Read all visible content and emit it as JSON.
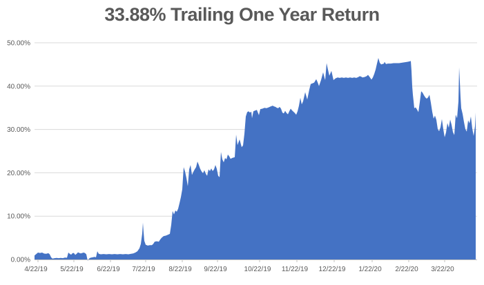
{
  "chart_data": {
    "type": "area",
    "title": "33.88% Trailing One Year Return",
    "series_name": "Trailing One Year Return",
    "last_value_pct": 33.88,
    "xlabel": "",
    "ylabel": "",
    "ylim": [
      0,
      50
    ],
    "x_range": [
      0,
      641
    ],
    "grid": true,
    "legend_position": "none",
    "colors": {
      "area": "#4472C4",
      "grid": "#D9D9D9",
      "axis": "#BFBFBF",
      "text": "#595959",
      "title": "#595959",
      "background": "#FFFFFF"
    },
    "y_ticks": [
      {
        "value": 0,
        "label": "0.00%"
      },
      {
        "value": 10,
        "label": "10.00%"
      },
      {
        "value": 20,
        "label": "20.00%"
      },
      {
        "value": 30,
        "label": "30.00%"
      },
      {
        "value": 40,
        "label": "40.00%"
      },
      {
        "value": 50,
        "label": "50.00%"
      }
    ],
    "x_ticks": [
      {
        "pos": 2,
        "label": "4/22/19"
      },
      {
        "pos": 54,
        "label": "5/22/19"
      },
      {
        "pos": 107,
        "label": "6/22/19"
      },
      {
        "pos": 158,
        "label": "7/22/19"
      },
      {
        "pos": 211,
        "label": "8/22/19"
      },
      {
        "pos": 262,
        "label": "9/22/19"
      },
      {
        "pos": 323,
        "label": "10/22/19"
      },
      {
        "pos": 377,
        "label": "11/22/19"
      },
      {
        "pos": 431,
        "label": "12/22/19"
      },
      {
        "pos": 486,
        "label": "1/22/20"
      },
      {
        "pos": 539,
        "label": "2/22/20"
      },
      {
        "pos": 591,
        "label": "3/22/20"
      }
    ],
    "points": [
      [
        0,
        0.9
      ],
      [
        2,
        1.2
      ],
      [
        5,
        1.6
      ],
      [
        8,
        1.5
      ],
      [
        11,
        1.6
      ],
      [
        14,
        1.35
      ],
      [
        17,
        1.3
      ],
      [
        20,
        1.45
      ],
      [
        22,
        1.2
      ],
      [
        24,
        0.5
      ],
      [
        26,
        0.2
      ],
      [
        29,
        0.3
      ],
      [
        32,
        0.35
      ],
      [
        35,
        0.3
      ],
      [
        38,
        0.35
      ],
      [
        41,
        0.3
      ],
      [
        44,
        0.45
      ],
      [
        47,
        0.4
      ],
      [
        49,
        1.6
      ],
      [
        51,
        1.3
      ],
      [
        53,
        1.1
      ],
      [
        55,
        1.45
      ],
      [
        57,
        1.5
      ],
      [
        59,
        1.05
      ],
      [
        61,
        1.3
      ],
      [
        63,
        1.65
      ],
      [
        65,
        1.5
      ],
      [
        67,
        1.4
      ],
      [
        69,
        1.5
      ],
      [
        71,
        1.6
      ],
      [
        73,
        1.5
      ],
      [
        75,
        1.2
      ],
      [
        77,
        -0.3
      ],
      [
        79,
        0.2
      ],
      [
        81,
        0.4
      ],
      [
        84,
        0.5
      ],
      [
        87,
        0.6
      ],
      [
        89,
        0.5
      ],
      [
        91,
        1.9
      ],
      [
        93,
        1.3
      ],
      [
        96,
        1.2
      ],
      [
        100,
        1.25
      ],
      [
        104,
        1.2
      ],
      [
        108,
        1.25
      ],
      [
        112,
        1.2
      ],
      [
        116,
        1.25
      ],
      [
        120,
        1.2
      ],
      [
        124,
        1.25
      ],
      [
        128,
        1.2
      ],
      [
        132,
        1.25
      ],
      [
        136,
        1.2
      ],
      [
        140,
        1.3
      ],
      [
        143,
        1.4
      ],
      [
        146,
        1.6
      ],
      [
        149,
        1.9
      ],
      [
        152,
        2.6
      ],
      [
        154,
        3.6
      ],
      [
        156,
        6.0
      ],
      [
        157,
        8.5
      ],
      [
        158,
        6.2
      ],
      [
        159,
        4.3
      ],
      [
        161,
        3.4
      ],
      [
        164,
        3.2
      ],
      [
        167,
        3.3
      ],
      [
        170,
        3.3
      ],
      [
        172,
        3.6
      ],
      [
        174,
        4.1
      ],
      [
        177,
        4.2
      ],
      [
        180,
        4.1
      ],
      [
        182,
        4.6
      ],
      [
        184,
        5.0
      ],
      [
        187,
        5.4
      ],
      [
        190,
        5.5
      ],
      [
        193,
        5.7
      ],
      [
        196,
        5.9
      ],
      [
        198,
        8.0
      ],
      [
        200,
        11.2
      ],
      [
        202,
        10.4
      ],
      [
        204,
        11.3
      ],
      [
        206,
        11.0
      ],
      [
        208,
        11.7
      ],
      [
        210,
        13.0
      ],
      [
        212,
        14.4
      ],
      [
        214,
        16.2
      ],
      [
        216,
        21.3
      ],
      [
        218,
        20.3
      ],
      [
        220,
        18.8
      ],
      [
        222,
        16.9
      ],
      [
        224,
        20.8
      ],
      [
        226,
        21.8
      ],
      [
        228,
        19.5
      ],
      [
        230,
        20.2
      ],
      [
        232,
        20.8
      ],
      [
        234,
        21.3
      ],
      [
        236,
        22.6
      ],
      [
        238,
        21.8
      ],
      [
        240,
        20.9
      ],
      [
        242,
        20.3
      ],
      [
        244,
        19.9
      ],
      [
        246,
        20.6
      ],
      [
        248,
        19.8
      ],
      [
        250,
        19.3
      ],
      [
        252,
        20.8
      ],
      [
        254,
        20.4
      ],
      [
        256,
        21.0
      ],
      [
        258,
        20.4
      ],
      [
        260,
        20.8
      ],
      [
        262,
        21.8
      ],
      [
        264,
        20.9
      ],
      [
        266,
        19.3
      ],
      [
        268,
        19.0
      ],
      [
        270,
        24.8
      ],
      [
        272,
        23.1
      ],
      [
        274,
        22.4
      ],
      [
        276,
        23.4
      ],
      [
        278,
        23.1
      ],
      [
        280,
        24.2
      ],
      [
        282,
        23.8
      ],
      [
        284,
        23.2
      ],
      [
        286,
        23.4
      ],
      [
        288,
        23.5
      ],
      [
        290,
        23.6
      ],
      [
        292,
        28.8
      ],
      [
        294,
        26.4
      ],
      [
        297,
        27.7
      ],
      [
        300,
        25.9
      ],
      [
        302,
        26.3
      ],
      [
        304,
        29.0
      ],
      [
        306,
        33.0
      ],
      [
        308,
        34.0
      ],
      [
        310,
        34.2
      ],
      [
        312,
        33.9
      ],
      [
        314,
        34.1
      ],
      [
        315,
        32.6
      ],
      [
        317,
        34.2
      ],
      [
        320,
        34.4
      ],
      [
        322,
        34.5
      ],
      [
        325,
        33.3
      ],
      [
        327,
        34.7
      ],
      [
        330,
        34.8
      ],
      [
        333,
        35.0
      ],
      [
        336,
        34.9
      ],
      [
        339,
        35.1
      ],
      [
        342,
        35.3
      ],
      [
        345,
        35.5
      ],
      [
        347,
        35.3
      ],
      [
        349,
        35.2
      ],
      [
        351,
        35.0
      ],
      [
        353,
        34.9
      ],
      [
        355,
        35.2
      ],
      [
        357,
        34.8
      ],
      [
        359,
        33.9
      ],
      [
        361,
        33.7
      ],
      [
        363,
        34.3
      ],
      [
        365,
        33.8
      ],
      [
        367,
        33.5
      ],
      [
        369,
        34.2
      ],
      [
        371,
        34.8
      ],
      [
        373,
        34.4
      ],
      [
        375,
        34.1
      ],
      [
        377,
        33.8
      ],
      [
        379,
        33.4
      ],
      [
        381,
        34.2
      ],
      [
        383,
        35.5
      ],
      [
        385,
        37.3
      ],
      [
        387,
        35.8
      ],
      [
        389,
        36.5
      ],
      [
        392,
        38.6
      ],
      [
        395,
        36.9
      ],
      [
        398,
        39.2
      ],
      [
        400,
        40.5
      ],
      [
        402,
        40.6
      ],
      [
        405,
        40.8
      ],
      [
        408,
        41.6
      ],
      [
        410,
        40.9
      ],
      [
        412,
        40.0
      ],
      [
        415,
        41.4
      ],
      [
        418,
        43.2
      ],
      [
        420,
        41.9
      ],
      [
        421,
        41.4
      ],
      [
        423,
        45.3
      ],
      [
        425,
        43.8
      ],
      [
        427,
        42.4
      ],
      [
        430,
        43.5
      ],
      [
        433,
        41.4
      ],
      [
        436,
        41.8
      ],
      [
        439,
        42.0
      ],
      [
        442,
        41.9
      ],
      [
        445,
        42.0
      ],
      [
        448,
        41.9
      ],
      [
        451,
        42.0
      ],
      [
        454,
        41.9
      ],
      [
        457,
        42.0
      ],
      [
        460,
        41.9
      ],
      [
        463,
        42.0
      ],
      [
        466,
        41.9
      ],
      [
        469,
        42.1
      ],
      [
        471,
        42.3
      ],
      [
        473,
        42.2
      ],
      [
        475,
        42.0
      ],
      [
        478,
        42.1
      ],
      [
        481,
        42.3
      ],
      [
        483,
        42.6
      ],
      [
        485,
        42.2
      ],
      [
        488,
        41.5
      ],
      [
        490,
        42.0
      ],
      [
        492,
        42.8
      ],
      [
        494,
        43.8
      ],
      [
        496,
        45.2
      ],
      [
        498,
        46.5
      ],
      [
        500,
        45.4
      ],
      [
        502,
        45.0
      ],
      [
        504,
        45.1
      ],
      [
        506,
        45.2
      ],
      [
        507,
        45.6
      ],
      [
        509,
        45.1
      ],
      [
        512,
        45.2
      ],
      [
        516,
        45.2
      ],
      [
        520,
        45.3
      ],
      [
        524,
        45.3
      ],
      [
        528,
        45.3
      ],
      [
        532,
        45.4
      ],
      [
        536,
        45.5
      ],
      [
        540,
        45.6
      ],
      [
        543,
        45.7
      ],
      [
        545,
        45.8
      ],
      [
        546,
        43.5
      ],
      [
        547,
        40.0
      ],
      [
        548,
        38.0
      ],
      [
        549,
        36.5
      ],
      [
        550,
        34.9
      ],
      [
        552,
        35.1
      ],
      [
        554,
        34.6
      ],
      [
        556,
        34.0
      ],
      [
        558,
        36.3
      ],
      [
        560,
        38.8
      ],
      [
        562,
        38.5
      ],
      [
        564,
        37.9
      ],
      [
        566,
        37.4
      ],
      [
        568,
        37.1
      ],
      [
        570,
        37.4
      ],
      [
        572,
        38.0
      ],
      [
        574,
        36.2
      ],
      [
        576,
        34.1
      ],
      [
        578,
        32.5
      ],
      [
        580,
        33.2
      ],
      [
        582,
        32.2
      ],
      [
        584,
        30.1
      ],
      [
        586,
        29.6
      ],
      [
        588,
        30.5
      ],
      [
        590,
        32.4
      ],
      [
        592,
        30.1
      ],
      [
        594,
        28.2
      ],
      [
        596,
        29.3
      ],
      [
        598,
        31.5
      ],
      [
        600,
        30.4
      ],
      [
        602,
        32.3
      ],
      [
        604,
        31.1
      ],
      [
        606,
        29.4
      ],
      [
        608,
        28.7
      ],
      [
        610,
        33.4
      ],
      [
        612,
        32.6
      ],
      [
        614,
        36.5
      ],
      [
        615,
        44.3
      ],
      [
        616,
        41.0
      ],
      [
        617,
        37.5
      ],
      [
        618,
        34.9
      ],
      [
        620,
        33.6
      ],
      [
        622,
        31.7
      ],
      [
        624,
        30.1
      ],
      [
        626,
        29.5
      ],
      [
        628,
        32.1
      ],
      [
        630,
        31.4
      ],
      [
        632,
        33.0
      ],
      [
        634,
        30.2
      ],
      [
        636,
        28.5
      ],
      [
        638,
        30.8
      ],
      [
        639,
        33.88
      ]
    ]
  }
}
